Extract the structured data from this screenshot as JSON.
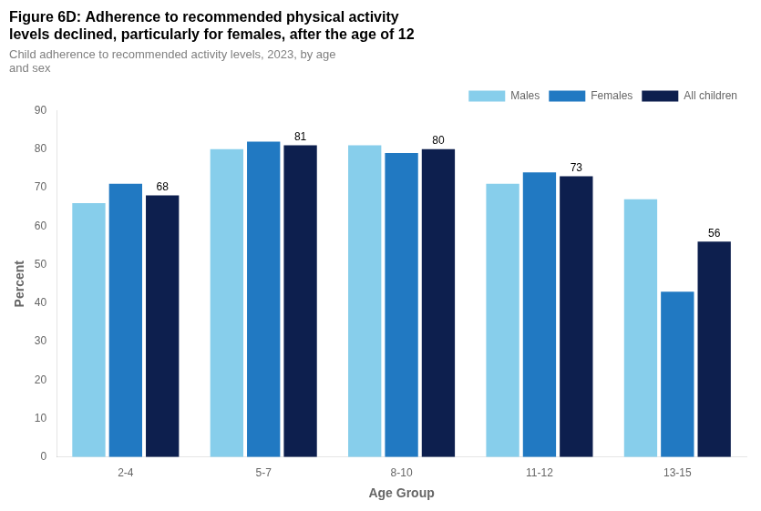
{
  "chart_data": {
    "type": "bar",
    "title": "Figure 6D: Adherence to recommended physical activity\nlevels declined, particularly for females, after the age of 12",
    "subtitle": "Child adherence to recommended activity levels, 2023, by age\nand sex",
    "xlabel": "Age Group",
    "ylabel": "Percent",
    "categories": [
      "2-4",
      "5-7",
      "8-10",
      "11-12",
      "13-15"
    ],
    "series": [
      {
        "name": "Males",
        "color": "#87CEEB",
        "values": [
          66,
          80,
          81,
          71,
          67
        ]
      },
      {
        "name": "Females",
        "color": "#2179C2",
        "values": [
          71,
          82,
          79,
          74,
          43
        ]
      },
      {
        "name": "All children",
        "color": "#0D1F4E",
        "values": [
          68,
          81,
          80,
          73,
          56
        ],
        "data_labels": true
      }
    ],
    "ylim": [
      0,
      90
    ],
    "yticks": [
      0,
      10,
      20,
      30,
      40,
      50,
      60,
      70,
      80,
      90
    ],
    "grid": false,
    "legend": "upper right"
  }
}
